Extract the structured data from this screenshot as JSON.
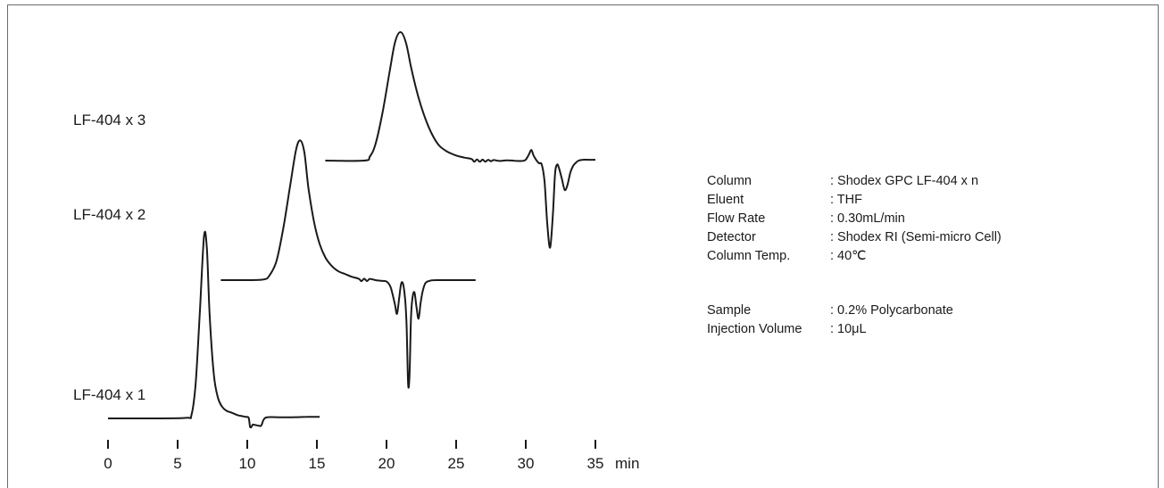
{
  "chart_data": {
    "type": "line",
    "title": "",
    "xlabel": "",
    "ylabel": "",
    "x_unit": "min",
    "x_ticks": [
      "0",
      "5",
      "10",
      "15",
      "20",
      "25",
      "30",
      "35"
    ],
    "xlim": [
      0,
      35
    ],
    "grid": false,
    "series": [
      {
        "name": "LF-404 x 1",
        "x": [
          0,
          3,
          5.6,
          6.0,
          6.3,
          6.6,
          6.9,
          7.1,
          7.3,
          7.6,
          7.9,
          8.2,
          8.5,
          8.9,
          9.3,
          9.6,
          9.9,
          10.1,
          10.2,
          10.3,
          10.4,
          10.6,
          10.8,
          11.0,
          11.2,
          11.5,
          12.5,
          13.5,
          14.3,
          15.2
        ],
        "y": [
          0,
          0,
          0.2,
          1.5,
          14,
          42,
          71,
          66,
          40,
          17,
          8,
          4.5,
          3,
          2.2,
          1.3,
          0.9,
          0.6,
          0.2,
          -3.2,
          -3.3,
          -2.4,
          -2.6,
          -2.8,
          -2.8,
          -0.3,
          0.5,
          0.4,
          0.5,
          0.6,
          0.6
        ]
      },
      {
        "name": "LF-404 x 2",
        "x": [
          8.1,
          10,
          11.2,
          11.6,
          12.1,
          12.6,
          13.1,
          13.5,
          13.8,
          14.1,
          14.4,
          14.8,
          15.2,
          15.6,
          16,
          16.5,
          17,
          17.5,
          18,
          18.2,
          18.4,
          18.6,
          18.8,
          19.2,
          19.6,
          20,
          20.3,
          20.6,
          20.75,
          20.9,
          21.05,
          21.2,
          21.35,
          21.45,
          21.55,
          21.65,
          21.75,
          21.85,
          22.0,
          22.15,
          22.3,
          22.45,
          22.6,
          22.8,
          23.1,
          23.6,
          26.4
        ],
        "y": [
          0,
          0,
          0.3,
          2,
          8,
          22,
          40,
          54,
          58,
          53,
          38,
          24,
          15,
          9.5,
          6.3,
          3.8,
          2.6,
          1.4,
          0.6,
          -0.4,
          0.6,
          -0.4,
          0.5,
          0,
          -0.3,
          -0.6,
          -3,
          -10,
          -14,
          -8,
          -1.5,
          -1.8,
          -9,
          -20,
          -43,
          -40,
          -17,
          -8,
          -5,
          -11,
          -16,
          -9.5,
          -4.5,
          -1.2,
          -0.3,
          0,
          0
        ]
      },
      {
        "name": "LF-404 x 3",
        "x": [
          15.6,
          18.4,
          18.8,
          19.2,
          19.7,
          20.2,
          20.6,
          21.0,
          21.4,
          21.8,
          22.3,
          22.8,
          23.3,
          23.8,
          24.4,
          25,
          25.6,
          26.1,
          26.3,
          26.5,
          26.7,
          26.9,
          27.1,
          27.3,
          27.5,
          27.7,
          28.1,
          28.6,
          29.2,
          29.9,
          30.2,
          30.4,
          30.55,
          30.75,
          30.95,
          31.15,
          31.35,
          31.55,
          31.75,
          31.95,
          32.1,
          32.25,
          32.4,
          32.6,
          32.8,
          33.0,
          33.2,
          33.4,
          33.6,
          33.8,
          34.1,
          34.5,
          35.0
        ],
        "y": [
          0,
          0,
          3,
          12,
          35,
          65,
          88,
          96,
          88,
          68,
          47,
          31,
          19,
          11,
          6.5,
          3.8,
          2.2,
          1.2,
          -0.8,
          0.9,
          -0.9,
          0.7,
          -0.8,
          0.6,
          -0.5,
          0.4,
          -0.3,
          0.2,
          -0.1,
          0,
          4,
          8,
          4,
          0.5,
          -2,
          -3,
          -16,
          -48,
          -65,
          -40,
          -10,
          -3,
          -6,
          -14,
          -22,
          -18,
          -9,
          -4,
          -1.5,
          0,
          0.6,
          0.6,
          0.6
        ]
      }
    ]
  },
  "conditions": [
    {
      "label": "Column",
      "value": ": Shodex GPC LF-404 x n"
    },
    {
      "label": "Eluent",
      "value": ": THF"
    },
    {
      "label": "Flow Rate",
      "value": ": 0.30mL/min"
    },
    {
      "label": "Detector",
      "value": ": Shodex RI (Semi-micro Cell)"
    },
    {
      "label": "Column Temp.",
      "value": ": 40℃"
    },
    {
      "label": "Sample",
      "value": ": 0.2% Polycarbonate"
    },
    {
      "label": "Injection Volume",
      "value": ": 10μL"
    }
  ],
  "colors": {
    "line": "#1a1a1a",
    "frame": "#6b6b6b",
    "background": "#ffffff"
  }
}
